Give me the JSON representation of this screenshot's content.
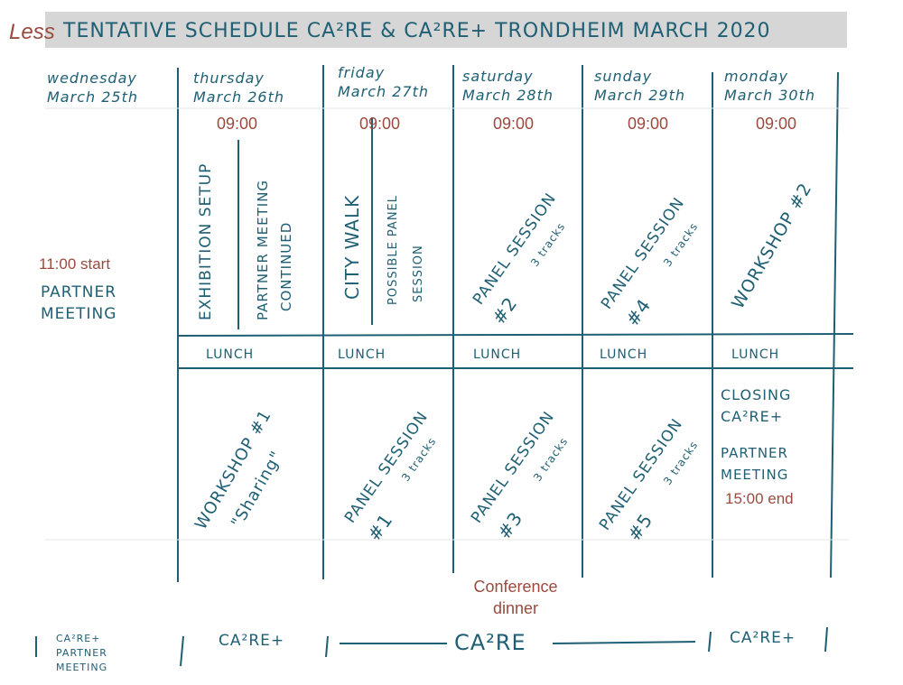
{
  "header": {
    "less": "Less",
    "title": "TENTATIVE SCHEDULE CA²RE & CA²RE+ TRONDHEIM MARCH 2020"
  },
  "days": [
    {
      "name": "wednesday",
      "date": "March 25th"
    },
    {
      "name": "thursday",
      "date": "March 26th"
    },
    {
      "name": "friday",
      "date": "March 27th"
    },
    {
      "name": "saturday",
      "date": "March 28th"
    },
    {
      "name": "sunday",
      "date": "March 29th"
    },
    {
      "name": "monday",
      "date": "March 30th"
    }
  ],
  "times": {
    "thursday": "09:00",
    "friday": "09:00",
    "saturday": "09:00",
    "sunday": "09:00",
    "monday": "09:00",
    "wed_start": "11:00 start",
    "mon_end": "15:00 end"
  },
  "wednesday": {
    "partner_1": "PARTNER",
    "partner_2": "MEETING"
  },
  "morning": {
    "exhibition": "EXHIBITION SETUP",
    "partner_cont_1": "PARTNER MEETING",
    "partner_cont_2": "CONTINUED",
    "city_walk": "CITY WALK",
    "possible_1": "POSSIBLE PANEL",
    "possible_2": "SESSION",
    "panel2_1": "PANEL SESSION",
    "panel2_2": "#2",
    "panel4_1": "PANEL SESSION",
    "panel4_2": "#4",
    "tracks": "3 tracks",
    "workshop2": "WORKSHOP #2"
  },
  "lunch": "LUNCH",
  "afternoon": {
    "workshop1_1": "WORKSHOP #1",
    "workshop1_2": "\"Sharing\"",
    "panel1_1": "PANEL SESSION",
    "panel1_2": "#1",
    "panel3_1": "PANEL SESSION",
    "panel3_2": "#3",
    "panel5_1": "PANEL SESSION",
    "panel5_2": "#5",
    "closing_1": "CLOSING",
    "closing_2": "CA²RE+",
    "partner_1": "PARTNER",
    "partner_2": "MEETING"
  },
  "dinner": {
    "line1": "Conference",
    "line2": "dinner"
  },
  "footer": {
    "wed_1": "CA²RE+",
    "wed_2": "PARTNER",
    "wed_3": "MEETING",
    "thu": "CA²RE+",
    "main": "CA²RE",
    "mon": "CA²RE+"
  }
}
